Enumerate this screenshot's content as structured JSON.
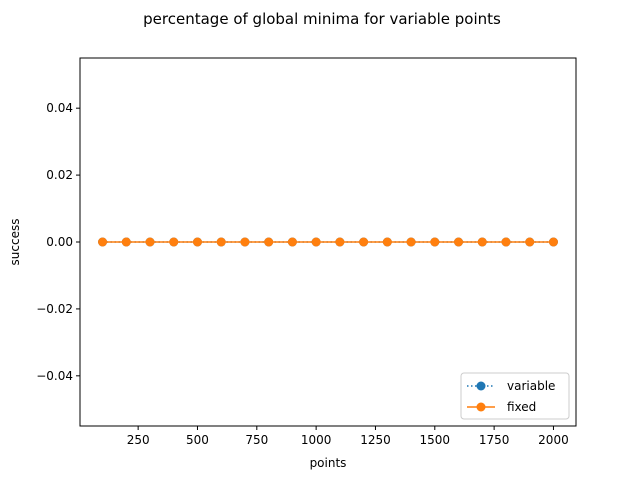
{
  "chart_data": {
    "type": "line",
    "title": "percentage of global minima for variable points",
    "xlabel": "points",
    "ylabel": "success",
    "xlim": [
      5,
      2095
    ],
    "ylim": [
      -0.055,
      0.055
    ],
    "xticks": [
      250,
      500,
      750,
      1000,
      1250,
      1500,
      1750,
      2000
    ],
    "xtick_labels": [
      "250",
      "500",
      "750",
      "1000",
      "1250",
      "1500",
      "1750",
      "2000"
    ],
    "yticks": [
      -0.04,
      -0.02,
      0.0,
      0.02,
      0.04
    ],
    "ytick_labels": [
      "−0.04",
      "−0.02",
      "0.00",
      "0.02",
      "0.04"
    ],
    "grid": false,
    "legend_position": "lower-right",
    "x": [
      100,
      200,
      300,
      400,
      500,
      600,
      700,
      800,
      900,
      1000,
      1100,
      1200,
      1300,
      1400,
      1500,
      1600,
      1700,
      1800,
      1900,
      2000
    ],
    "series": [
      {
        "name": "variable",
        "color": "#1f77b4",
        "linestyle": "dotted",
        "marker": "circle",
        "values": [
          0,
          0,
          0,
          0,
          0,
          0,
          0,
          0,
          0,
          0,
          0,
          0,
          0,
          0,
          0,
          0,
          0,
          0,
          0,
          0
        ]
      },
      {
        "name": "fixed",
        "color": "#ff7f0e",
        "linestyle": "solid",
        "marker": "circle",
        "values": [
          0,
          0,
          0,
          0,
          0,
          0,
          0,
          0,
          0,
          0,
          0,
          0,
          0,
          0,
          0,
          0,
          0,
          0,
          0,
          0
        ]
      }
    ]
  }
}
